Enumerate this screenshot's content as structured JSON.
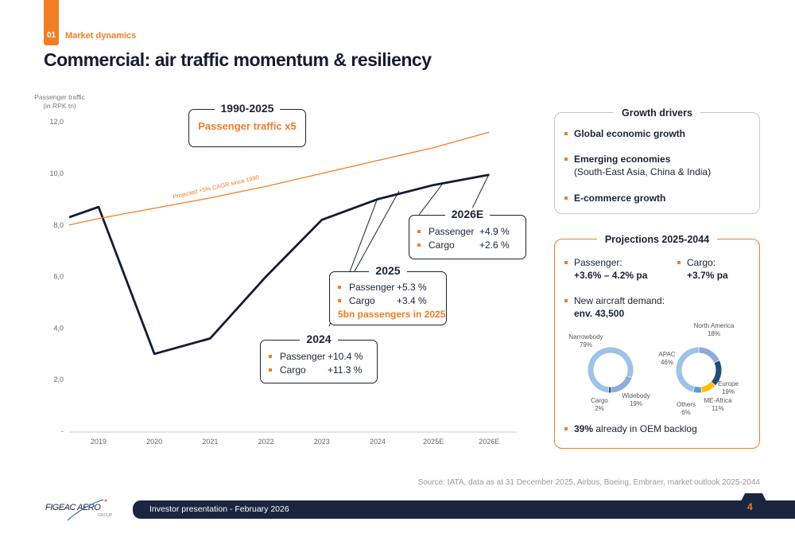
{
  "header": {
    "section_number": "01",
    "section_label": "Market dynamics",
    "title": "Commercial: air traffic momentum & resiliency"
  },
  "chart_data": {
    "type": "line",
    "ylabel": "Passenger traffic\n(in RPK tn)",
    "ylabel_lines": [
      "Passenger traffic",
      "(in RPK tn)"
    ],
    "categories": [
      "2019",
      "2020",
      "2021",
      "2022",
      "2023",
      "2024",
      "2025E",
      "2026E"
    ],
    "y_ticks": [
      "-",
      "2,0",
      "4,0",
      "6,0",
      "8,0",
      "10,0",
      "12,0"
    ],
    "ylim": [
      0,
      12
    ],
    "grid": false,
    "series": [
      {
        "name": "",
        "color": "#141c33",
        "values": [
          8.7,
          3.0,
          3.6,
          6.0,
          8.2,
          9.0,
          9.55,
          9.95
        ],
        "start_value": 8.3
      },
      {
        "name": "Projected +5% CAGR since 1990",
        "color": "#f07e26",
        "values": [
          8.25,
          8.65,
          9.05,
          9.5,
          10.0,
          10.5,
          11.0,
          11.6
        ],
        "start_value": 8.0
      }
    ],
    "projection_label": "Projected +5% CAGR since 1990"
  },
  "callouts": {
    "headline": {
      "title": "1990-2025",
      "text": "Passenger traffic x5"
    },
    "y2024": {
      "title": "2024",
      "rows": [
        {
          "label": "Passenger",
          "value": "+10.4 %"
        },
        {
          "label": "Cargo",
          "value": "+11.3 %"
        }
      ]
    },
    "y2025": {
      "title": "2025",
      "rows": [
        {
          "label": "Passenger",
          "value": "+5.3 %"
        },
        {
          "label": "Cargo",
          "value": "+3.4 %"
        }
      ],
      "note": "5bn passengers in 2025"
    },
    "y2026": {
      "title": "2026E",
      "rows": [
        {
          "label": "Passenger",
          "value": "+4.9 %"
        },
        {
          "label": "Cargo",
          "value": "+2.6 %"
        }
      ]
    }
  },
  "growth_drivers": {
    "title": "Growth drivers",
    "items": [
      {
        "bold": "Global economic growth",
        "sub": ""
      },
      {
        "bold": "Emerging economies",
        "sub": "(South-East Asia, China & India)"
      },
      {
        "bold": "E-commerce growth",
        "sub": ""
      }
    ]
  },
  "projections": {
    "title": "Projections 2025-2044",
    "passenger_label": "Passenger:",
    "passenger_value": "+3.6% – 4.2% pa",
    "cargo_label": "Cargo:",
    "cargo_value": "+3.7% pa",
    "demand_label": "New aircraft demand:",
    "demand_value": "env. 43,500",
    "backlog_bold": "39%",
    "backlog_text": " already in OEM backlog",
    "donut_type": [
      {
        "name": "Narrowbody",
        "pct": "79%",
        "value": 79,
        "color": "#9dc3e6"
      },
      {
        "name": "Widebody",
        "pct": "19%",
        "value": 19,
        "color": "#8faadc"
      },
      {
        "name": "Cargo",
        "pct": "2%",
        "value": 2,
        "color": "#1f4e79"
      }
    ],
    "donut_region": [
      {
        "name": "North America",
        "pct": "18%",
        "value": 18,
        "color": "#8faadc"
      },
      {
        "name": "Europe",
        "pct": "19%",
        "value": 19,
        "color": "#1f4e79"
      },
      {
        "name": "ME-Africa",
        "pct": "11%",
        "value": 11,
        "color": "#ffc000"
      },
      {
        "name": "Others",
        "pct": "6%",
        "value": 6,
        "color": "#5b9bd5"
      },
      {
        "name": "APAC",
        "pct": "46%",
        "value": 46,
        "color": "#9dc3e6"
      }
    ]
  },
  "source": "Source: IATA, data as at 31 December 2025, Airbus, Boeing, Embraer, market outlook 2025-2044",
  "footer": {
    "logo_text": "FIGEAC AERO GROUP",
    "presentation": "Investor presentation - February 2026",
    "page": "4"
  },
  "colors": {
    "accent": "#f07e26",
    "navy": "#1b2540"
  }
}
